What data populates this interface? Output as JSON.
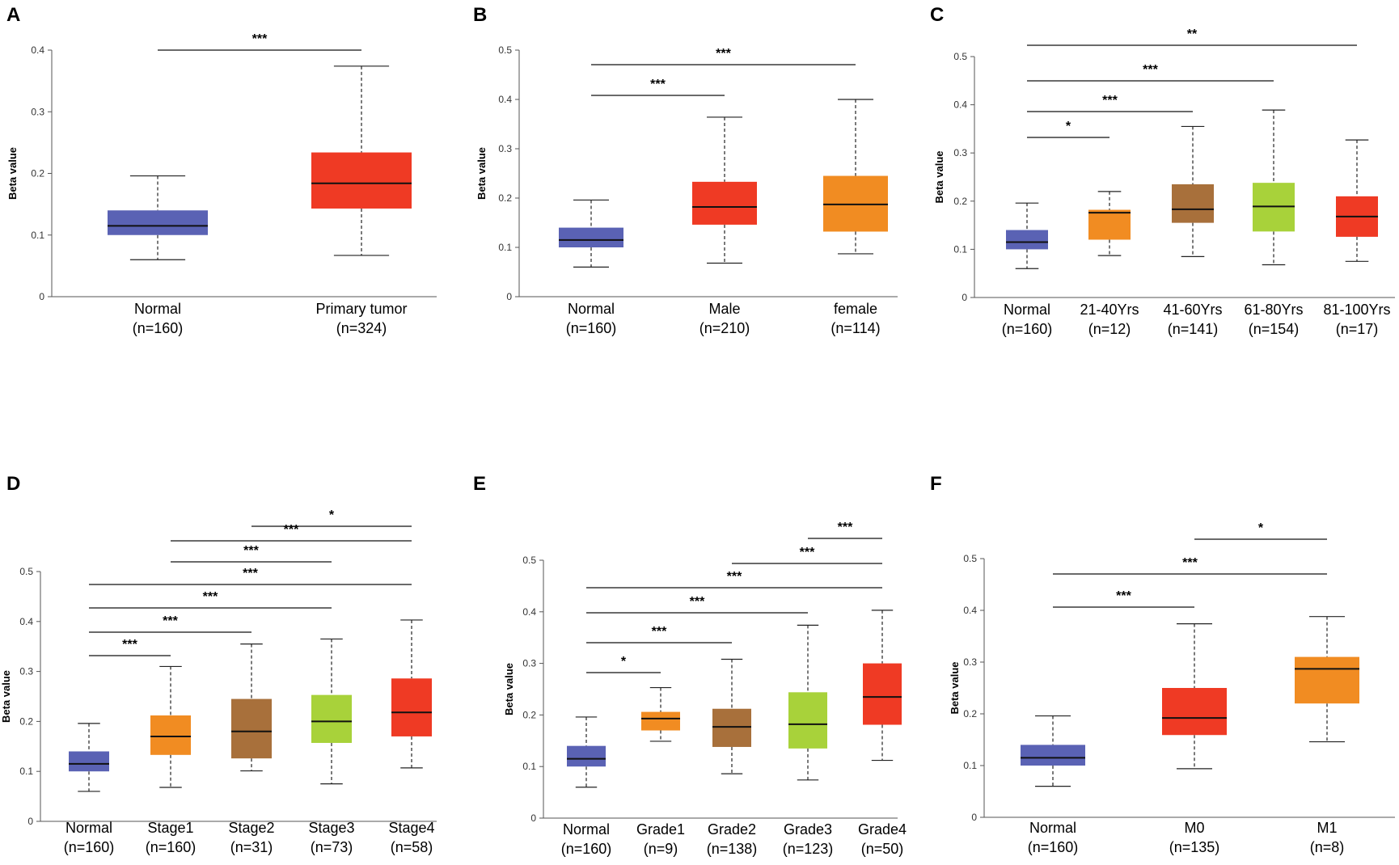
{
  "colors": {
    "normal": "#5a62b4",
    "red": "#ef3a24",
    "orange": "#f18c22",
    "brown": "#a8703b",
    "lime": "#a8d23a"
  },
  "chart_data": [
    {
      "panel": "A",
      "type": "box",
      "ylabel": "Beta value",
      "ylim": [
        0,
        0.4
      ],
      "yticks": [
        "0",
        "0.1",
        "0.2",
        "0.3",
        "0.4"
      ],
      "groups": [
        {
          "label": "Normal",
          "n": "(n=160)",
          "color": "normal",
          "whisker_low": 0.06,
          "q1": 0.1,
          "median": 0.115,
          "q3": 0.14,
          "whisker_high": 0.196
        },
        {
          "label": "Primary tumor",
          "n": "(n=324)",
          "color": "red",
          "whisker_low": 0.067,
          "q1": 0.143,
          "median": 0.184,
          "q3": 0.234,
          "whisker_high": 0.374
        }
      ],
      "comparisons": [
        {
          "from": 0,
          "to": 1,
          "label": "***"
        }
      ]
    },
    {
      "panel": "B",
      "type": "box",
      "ylabel": "Beta value",
      "ylim": [
        0,
        0.5
      ],
      "yticks": [
        "0",
        "0.1",
        "0.2",
        "0.3",
        "0.4",
        "0.5"
      ],
      "groups": [
        {
          "label": "Normal",
          "n": "(n=160)",
          "color": "normal",
          "whisker_low": 0.06,
          "q1": 0.1,
          "median": 0.115,
          "q3": 0.14,
          "whisker_high": 0.196
        },
        {
          "label": "Male",
          "n": "(n=210)",
          "color": "red",
          "whisker_low": 0.068,
          "q1": 0.146,
          "median": 0.182,
          "q3": 0.233,
          "whisker_high": 0.364
        },
        {
          "label": "female",
          "n": "(n=114)",
          "color": "orange",
          "whisker_low": 0.087,
          "q1": 0.132,
          "median": 0.187,
          "q3": 0.245,
          "whisker_high": 0.4
        }
      ],
      "comparisons": [
        {
          "from": 0,
          "to": 1,
          "label": "***"
        },
        {
          "from": 0,
          "to": 2,
          "label": "***"
        }
      ]
    },
    {
      "panel": "C",
      "type": "box",
      "ylabel": "Beta value",
      "ylim": [
        0,
        0.5
      ],
      "yticks": [
        "0",
        "0.1",
        "0.2",
        "0.3",
        "0.4",
        "0.5"
      ],
      "groups": [
        {
          "label": "Normal",
          "n": "(n=160)",
          "color": "normal",
          "whisker_low": 0.06,
          "q1": 0.1,
          "median": 0.115,
          "q3": 0.14,
          "whisker_high": 0.196
        },
        {
          "label": "21-40Yrs",
          "n": "(n=12)",
          "color": "orange",
          "whisker_low": 0.087,
          "q1": 0.12,
          "median": 0.176,
          "q3": 0.182,
          "whisker_high": 0.22
        },
        {
          "label": "41-60Yrs",
          "n": "(n=141)",
          "color": "brown",
          "whisker_low": 0.085,
          "q1": 0.155,
          "median": 0.183,
          "q3": 0.235,
          "whisker_high": 0.355
        },
        {
          "label": "61-80Yrs",
          "n": "(n=154)",
          "color": "lime",
          "whisker_low": 0.068,
          "q1": 0.137,
          "median": 0.189,
          "q3": 0.238,
          "whisker_high": 0.389
        },
        {
          "label": "81-100Yrs",
          "n": "(n=17)",
          "color": "red",
          "whisker_low": 0.075,
          "q1": 0.126,
          "median": 0.168,
          "q3": 0.21,
          "whisker_high": 0.327
        }
      ],
      "comparisons": [
        {
          "from": 0,
          "to": 1,
          "label": "*"
        },
        {
          "from": 0,
          "to": 2,
          "label": "***"
        },
        {
          "from": 0,
          "to": 3,
          "label": "***"
        },
        {
          "from": 0,
          "to": 4,
          "label": "**"
        }
      ]
    },
    {
      "panel": "D",
      "type": "box",
      "ylabel": "Beta value",
      "ylim": [
        0,
        0.5
      ],
      "yticks": [
        "0",
        "0.1",
        "0.2",
        "0.3",
        "0.4",
        "0.5"
      ],
      "groups": [
        {
          "label": "Normal",
          "n": "(n=160)",
          "color": "normal",
          "whisker_low": 0.06,
          "q1": 0.1,
          "median": 0.115,
          "q3": 0.14,
          "whisker_high": 0.196
        },
        {
          "label": "Stage1",
          "n": "(n=160)",
          "color": "orange",
          "whisker_low": 0.068,
          "q1": 0.133,
          "median": 0.17,
          "q3": 0.212,
          "whisker_high": 0.31
        },
        {
          "label": "Stage2",
          "n": "(n=31)",
          "color": "brown",
          "whisker_low": 0.101,
          "q1": 0.126,
          "median": 0.18,
          "q3": 0.245,
          "whisker_high": 0.355
        },
        {
          "label": "Stage3",
          "n": "(n=73)",
          "color": "lime",
          "whisker_low": 0.075,
          "q1": 0.157,
          "median": 0.2,
          "q3": 0.253,
          "whisker_high": 0.365
        },
        {
          "label": "Stage4",
          "n": "(n=58)",
          "color": "red",
          "whisker_low": 0.107,
          "q1": 0.17,
          "median": 0.218,
          "q3": 0.286,
          "whisker_high": 0.403
        }
      ],
      "comparisons": [
        {
          "from": 0,
          "to": 1,
          "label": "***"
        },
        {
          "from": 0,
          "to": 2,
          "label": "***"
        },
        {
          "from": 0,
          "to": 3,
          "label": "***"
        },
        {
          "from": 0,
          "to": 4,
          "label": "***"
        },
        {
          "from": 1,
          "to": 3,
          "label": "***"
        },
        {
          "from": 1,
          "to": 4,
          "label": "***"
        },
        {
          "from": 2,
          "to": 4,
          "label": "*"
        }
      ]
    },
    {
      "panel": "E",
      "type": "box",
      "ylabel": "Beta value",
      "ylim": [
        0,
        0.5
      ],
      "yticks": [
        "0",
        "0.1",
        "0.2",
        "0.3",
        "0.4",
        "0.5"
      ],
      "groups": [
        {
          "label": "Normal",
          "n": "(n=160)",
          "color": "normal",
          "whisker_low": 0.06,
          "q1": 0.1,
          "median": 0.115,
          "q3": 0.14,
          "whisker_high": 0.196
        },
        {
          "label": "Grade1",
          "n": "(n=9)",
          "color": "orange",
          "whisker_low": 0.149,
          "q1": 0.17,
          "median": 0.193,
          "q3": 0.206,
          "whisker_high": 0.253
        },
        {
          "label": "Grade2",
          "n": "(n=138)",
          "color": "brown",
          "whisker_low": 0.086,
          "q1": 0.138,
          "median": 0.177,
          "q3": 0.212,
          "whisker_high": 0.308
        },
        {
          "label": "Grade3",
          "n": "(n=123)",
          "color": "lime",
          "whisker_low": 0.074,
          "q1": 0.135,
          "median": 0.182,
          "q3": 0.244,
          "whisker_high": 0.374
        },
        {
          "label": "Grade4",
          "n": "(n=50)",
          "color": "red",
          "whisker_low": 0.112,
          "q1": 0.181,
          "median": 0.235,
          "q3": 0.3,
          "whisker_high": 0.403
        }
      ],
      "comparisons": [
        {
          "from": 0,
          "to": 1,
          "label": "*"
        },
        {
          "from": 0,
          "to": 2,
          "label": "***"
        },
        {
          "from": 0,
          "to": 3,
          "label": "***"
        },
        {
          "from": 0,
          "to": 4,
          "label": "***"
        },
        {
          "from": 2,
          "to": 4,
          "label": "***"
        },
        {
          "from": 3,
          "to": 4,
          "label": "***"
        }
      ]
    },
    {
      "panel": "F",
      "type": "box",
      "ylabel": "Beta value",
      "ylim": [
        0,
        0.5
      ],
      "yticks": [
        "0",
        "0.1",
        "0.2",
        "0.3",
        "0.4",
        "0.5"
      ],
      "groups": [
        {
          "label": "Normal",
          "n": "(n=160)",
          "color": "normal",
          "whisker_low": 0.06,
          "q1": 0.1,
          "median": 0.115,
          "q3": 0.14,
          "whisker_high": 0.196
        },
        {
          "label": "M0",
          "n": "(n=135)",
          "color": "red",
          "whisker_low": 0.094,
          "q1": 0.159,
          "median": 0.192,
          "q3": 0.25,
          "whisker_high": 0.374
        },
        {
          "label": "M1",
          "n": "(n=8)",
          "color": "orange",
          "whisker_low": 0.146,
          "q1": 0.22,
          "median": 0.287,
          "q3": 0.31,
          "whisker_high": 0.388
        }
      ],
      "comparisons": [
        {
          "from": 0,
          "to": 1,
          "label": "***"
        },
        {
          "from": 0,
          "to": 2,
          "label": "***"
        },
        {
          "from": 1,
          "to": 2,
          "label": "*"
        }
      ]
    }
  ]
}
